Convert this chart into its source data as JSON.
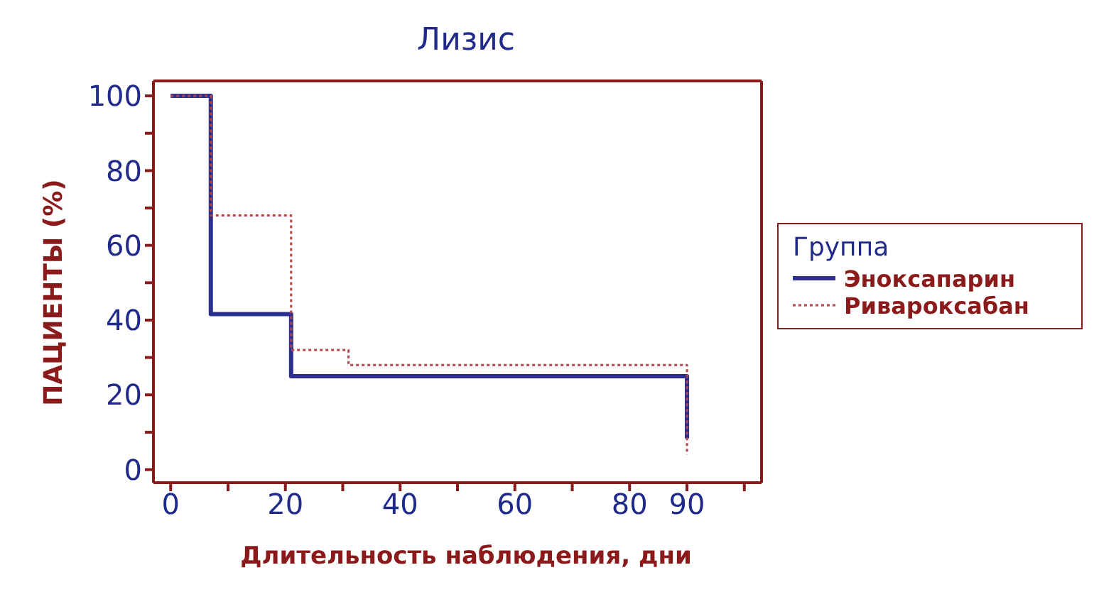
{
  "chart_data": {
    "type": "step",
    "title": "Лизис",
    "xlabel": "Длительность наблюдения, дни",
    "ylabel": "ПАЦИЕНТЫ (%)",
    "legend_title": "Группа",
    "legend": "right",
    "marker": "none",
    "xlim": [
      -3,
      103
    ],
    "ylim": [
      -3.5,
      104
    ],
    "xticks": [
      0,
      {
        "value": 10,
        "label": null
      },
      20,
      {
        "value": 30,
        "label": null
      },
      40,
      {
        "value": 50,
        "label": null
      },
      60,
      {
        "value": 70,
        "label": null
      },
      80,
      90,
      {
        "value": 100,
        "label": null
      }
    ],
    "yticks": [
      0,
      {
        "value": 10,
        "label": null
      },
      20,
      {
        "value": 30,
        "label": null
      },
      40,
      {
        "value": 50,
        "label": null
      },
      60,
      {
        "value": 70,
        "label": null
      },
      80,
      {
        "value": 90,
        "label": null
      },
      100
    ],
    "series": [
      {
        "name": "Эноксапарин",
        "color": "#2b2f8f",
        "line_style": "solid",
        "x": [
          0,
          7,
          21,
          90
        ],
        "values": [
          100,
          41.6,
          25,
          8.3
        ]
      },
      {
        "name": "Ривароксабан",
        "color": "#b5454a",
        "line_style": "dotted",
        "x": [
          0,
          7,
          21,
          31,
          90
        ],
        "values": [
          100,
          68,
          32,
          28,
          4
        ]
      }
    ]
  }
}
